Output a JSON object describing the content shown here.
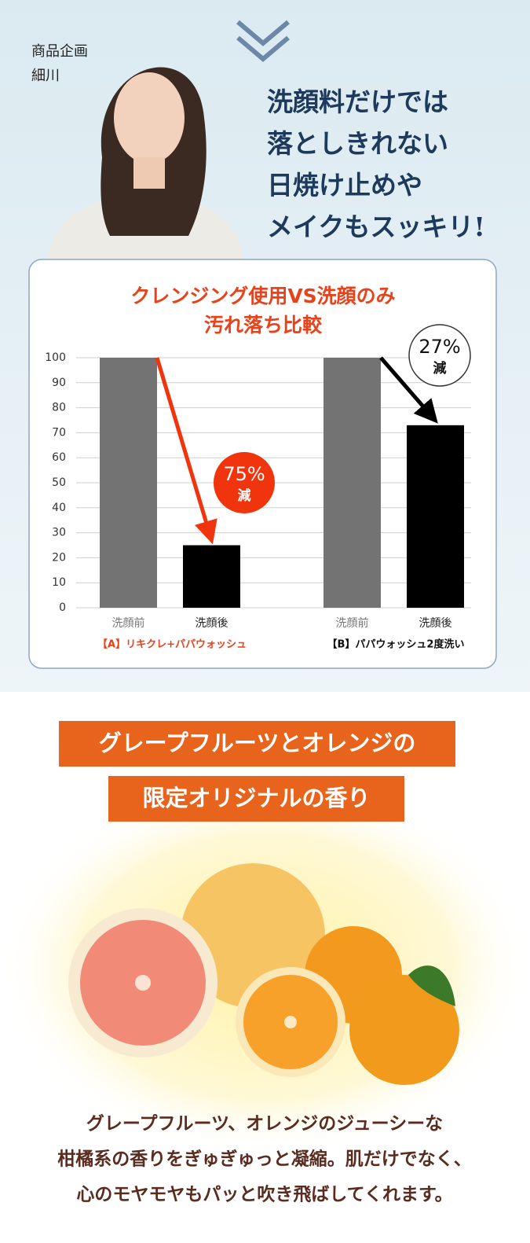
{
  "header": {
    "person_role": "商品企画",
    "person_name": "細川",
    "headline": [
      "洗顔料だけでは",
      "落としきれない",
      "日焼け止めや",
      "メイクもスッキリ!"
    ]
  },
  "chart_data": {
    "type": "bar",
    "title": [
      "クレンジング使用VS洗顔のみ",
      "汚れ落ち比較"
    ],
    "ylim": [
      0,
      100
    ],
    "yticks": [
      0,
      10,
      20,
      30,
      40,
      50,
      60,
      70,
      80,
      90,
      100
    ],
    "grid": true,
    "colors": [
      "#737373",
      "#000000"
    ],
    "groups": [
      {
        "label": "【A】リキクレ+パパウォッシュ",
        "label_color": "#e8421a",
        "categories": [
          "洗顔前",
          "洗顔後"
        ],
        "values": [
          100,
          25
        ],
        "reduction": {
          "value": 75,
          "label": "75%",
          "word": "減"
        },
        "arrow_color": "#f0340e"
      },
      {
        "label": "【B】パパウォッシュ2度洗い",
        "label_color": "#111111",
        "categories": [
          "洗顔前",
          "洗顔後"
        ],
        "values": [
          100,
          73
        ],
        "reduction": {
          "value": 27,
          "label": "27%",
          "word": "減"
        },
        "arrow_color": "#000000"
      }
    ]
  },
  "section": {
    "title": [
      "グレープフルーツとオレンジの",
      "限定オリジナルの香り"
    ],
    "description": [
      "グレープフルーツ、オレンジのジューシーな",
      "柑橘系の香りをぎゅぎゅっと凝縮。肌だけでなく、",
      "心のモヤモヤもパッと吹き飛ばしてくれます。"
    ]
  }
}
